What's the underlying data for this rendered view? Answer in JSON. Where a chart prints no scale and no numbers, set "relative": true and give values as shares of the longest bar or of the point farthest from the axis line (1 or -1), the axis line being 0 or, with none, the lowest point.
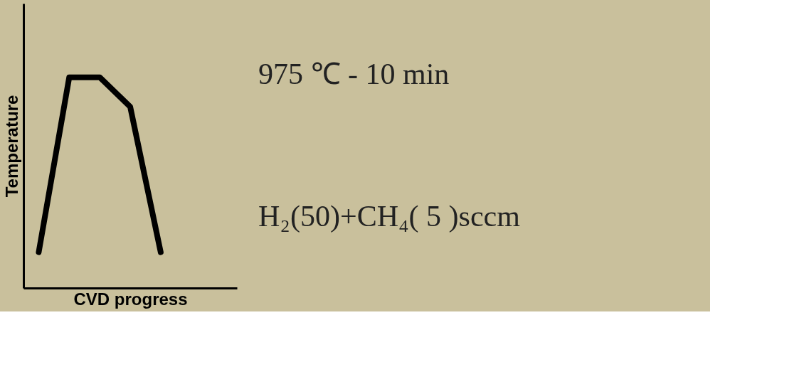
{
  "chart_data": {
    "type": "line",
    "relative": true,
    "xlabel": "CVD progress",
    "ylabel": "Temperature",
    "categories": [
      null,
      null,
      null,
      null,
      null
    ],
    "series": [
      {
        "color": "#000000",
        "values": [
          0.17,
          1,
          1,
          0.86,
          0.17
        ]
      }
    ],
    "annotations": [
      "975 ℃ - 10 min",
      "H₂(50)+CH₄( 5 )sccm"
    ],
    "grid": false,
    "line_style": "solid"
  }
}
